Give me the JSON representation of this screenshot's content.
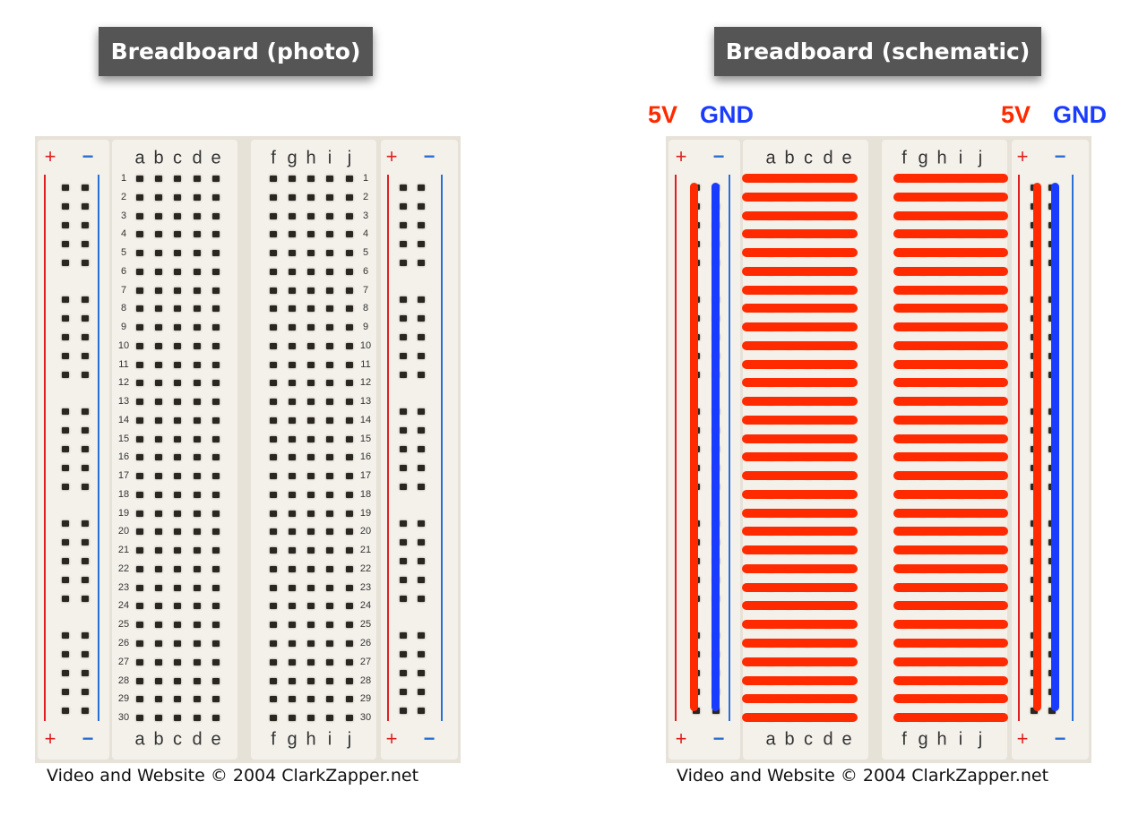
{
  "left_panel": {
    "title": "Breadboard (photo)",
    "caption": "Video and Website © 2004 ClarkZapper.net"
  },
  "right_panel": {
    "title": "Breadboard (schematic)",
    "caption": "Video and Website © 2004 ClarkZapper.net",
    "labels": {
      "left_5v": "5V",
      "left_gnd": "GND",
      "right_5v": "5V",
      "right_gnd": "GND"
    }
  },
  "board": {
    "plus": "+",
    "minus": "−",
    "columns_left": [
      "a",
      "b",
      "c",
      "d",
      "e"
    ],
    "columns_right": [
      "f",
      "g",
      "h",
      "i",
      "j"
    ],
    "rows": [
      1,
      2,
      3,
      4,
      5,
      6,
      7,
      8,
      9,
      10,
      11,
      12,
      13,
      14,
      15,
      16,
      17,
      18,
      19,
      20,
      21,
      22,
      23,
      24,
      25,
      26,
      27,
      28,
      29,
      30
    ]
  },
  "colors": {
    "power": "#ff2a00",
    "ground": "#1a3cff",
    "rail_plus": "#e02020",
    "rail_minus": "#2a6fd6",
    "title_bg": "#555555"
  }
}
